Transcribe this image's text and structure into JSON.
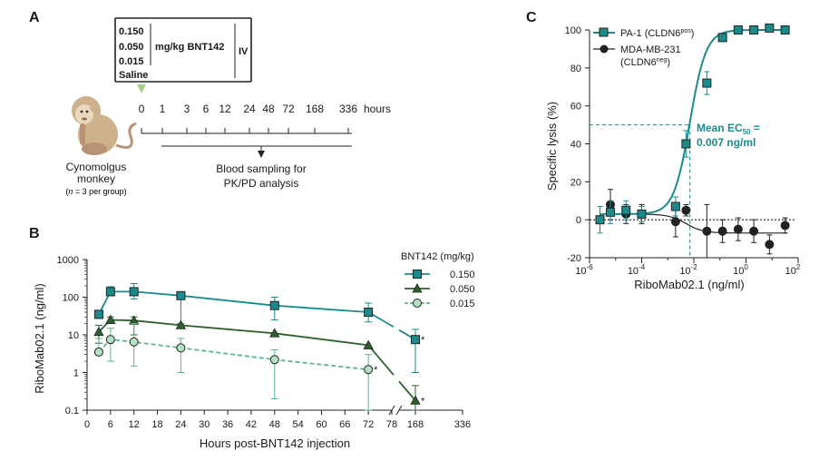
{
  "colors": {
    "teal": "#1a8b8a",
    "dark_green": "#2e5f2e",
    "light_green": "#5db48a",
    "light_green_fill": "#b6e0c4",
    "black": "#222222",
    "arrow_green": "#a6d08a"
  },
  "panel_a": {
    "label": "A",
    "doses": [
      "0.150",
      "0.050",
      "0.015",
      "Saline"
    ],
    "dose_unit": "mg/kg BNT142",
    "route": "IV",
    "timeline_ticks": [
      "0",
      "1",
      "3",
      "6",
      "12",
      "24",
      "48",
      "72",
      "168",
      "336"
    ],
    "timeline_unit": "hours",
    "sampling_text": [
      "Blood sampling for",
      "PK/PD analysis"
    ],
    "animal_label": [
      "Cynomolgus",
      "monkey"
    ],
    "n_prefix": "n",
    "n_suffix": " = 3 per group)",
    "n_open": "("
  },
  "chart_data": [
    {
      "panel": "B",
      "type": "line",
      "title": "",
      "xlabel": "Hours post-BNT142 injection",
      "ylabel": "RiboMab02.1 (ng/ml)",
      "yscale": "log",
      "ylim": [
        0.1,
        1000
      ],
      "x_ticks": [
        "0",
        "6",
        "12",
        "18",
        "24",
        "30",
        "36",
        "42",
        "48",
        "54",
        "60",
        "66",
        "72",
        "78",
        "168",
        "336"
      ],
      "y_ticks": [
        "0.1",
        "1",
        "10",
        "100",
        "1000"
      ],
      "legend_title": "BNT142 (mg/kg)",
      "series": [
        {
          "name": "0.150",
          "marker": "square",
          "line": "solid",
          "x": [
            3,
            6,
            12,
            24,
            48,
            72,
            168
          ],
          "y": [
            35,
            140,
            140,
            110,
            60,
            40,
            7.5
          ],
          "err_low": [
            null,
            110,
            90,
            20,
            25,
            22,
            1
          ],
          "err_high": [
            null,
            190,
            230,
            null,
            100,
            70,
            14
          ]
        },
        {
          "name": "0.050",
          "marker": "triangle",
          "line": "solid",
          "x": [
            3,
            6,
            12,
            24,
            48,
            72,
            168
          ],
          "y": [
            12,
            25,
            24,
            18,
            11,
            5.3,
            0.18
          ],
          "err_low": [
            6,
            20,
            10,
            null,
            null,
            null,
            0.1
          ],
          "err_high": [
            18,
            30,
            30,
            null,
            null,
            null,
            0.45
          ]
        },
        {
          "name": "0.015",
          "marker": "circle",
          "line": "dashed",
          "x": [
            3,
            6,
            12,
            24,
            48,
            72
          ],
          "y": [
            3.5,
            7.5,
            6.5,
            4.5,
            2.2,
            1.2
          ],
          "err_low": [
            null,
            2,
            1.5,
            1,
            0.2,
            0.1
          ],
          "err_high": [
            8,
            15,
            20,
            8,
            4,
            3
          ]
        }
      ],
      "asterisk": "*"
    },
    {
      "panel": "C",
      "type": "scatter",
      "title": "",
      "xlabel": "RiboMab02.1 (ng/ml)",
      "ylabel": "Specific lysis (%)",
      "xscale": "log",
      "xlim": [
        -6,
        2
      ],
      "ylim": [
        -20,
        100
      ],
      "x_ticks": [
        {
          "base": "10",
          "exp": "-6"
        },
        {
          "base": "10",
          "exp": "-4"
        },
        {
          "base": "10",
          "exp": "-2"
        },
        {
          "base": "10",
          "exp": "0"
        },
        {
          "base": "10",
          "exp": "2"
        }
      ],
      "y_ticks": [
        "100",
        "80",
        "60",
        "40",
        "20",
        "0",
        "-20"
      ],
      "series": [
        {
          "name": "PA-1 (CLDN6",
          "name_sup": "pos",
          "name_end": ")",
          "marker": "square",
          "fit": "sigmoid",
          "log_x": [
            -5.6,
            -5.2,
            -4.6,
            -4.0,
            -2.7,
            -2.3,
            -1.5,
            -0.9,
            -0.3,
            0.3,
            0.9,
            1.5
          ],
          "y": [
            0,
            4,
            5,
            3,
            7,
            40,
            72,
            96,
            100,
            100,
            101,
            100
          ],
          "err": [
            7,
            6,
            5,
            4,
            5,
            7,
            6,
            2,
            1,
            1,
            1,
            1
          ],
          "ec50_log": -2.15
        },
        {
          "name": "MDA-MB-231",
          "name2": "(CLDN6",
          "name2_sup": "neg",
          "name2_end": ")",
          "marker": "circle",
          "fit": "decay",
          "log_x": [
            -5.2,
            -4.6,
            -4.0,
            -2.7,
            -2.3,
            -1.5,
            -0.9,
            -0.3,
            0.3,
            0.9,
            1.5
          ],
          "y": [
            8,
            3,
            3,
            -1,
            5,
            -6,
            -6,
            -5,
            -6,
            -13,
            -3
          ],
          "err": [
            8,
            5,
            5,
            8,
            3,
            14,
            6,
            6,
            6,
            5,
            4
          ]
        }
      ],
      "ec50_label": "Mean EC",
      "ec50_sub": "50",
      "ec50_eq": " =",
      "ec50_value": "0.007 ng/ml"
    }
  ],
  "panel_b_label": "B",
  "panel_c_label": "C"
}
